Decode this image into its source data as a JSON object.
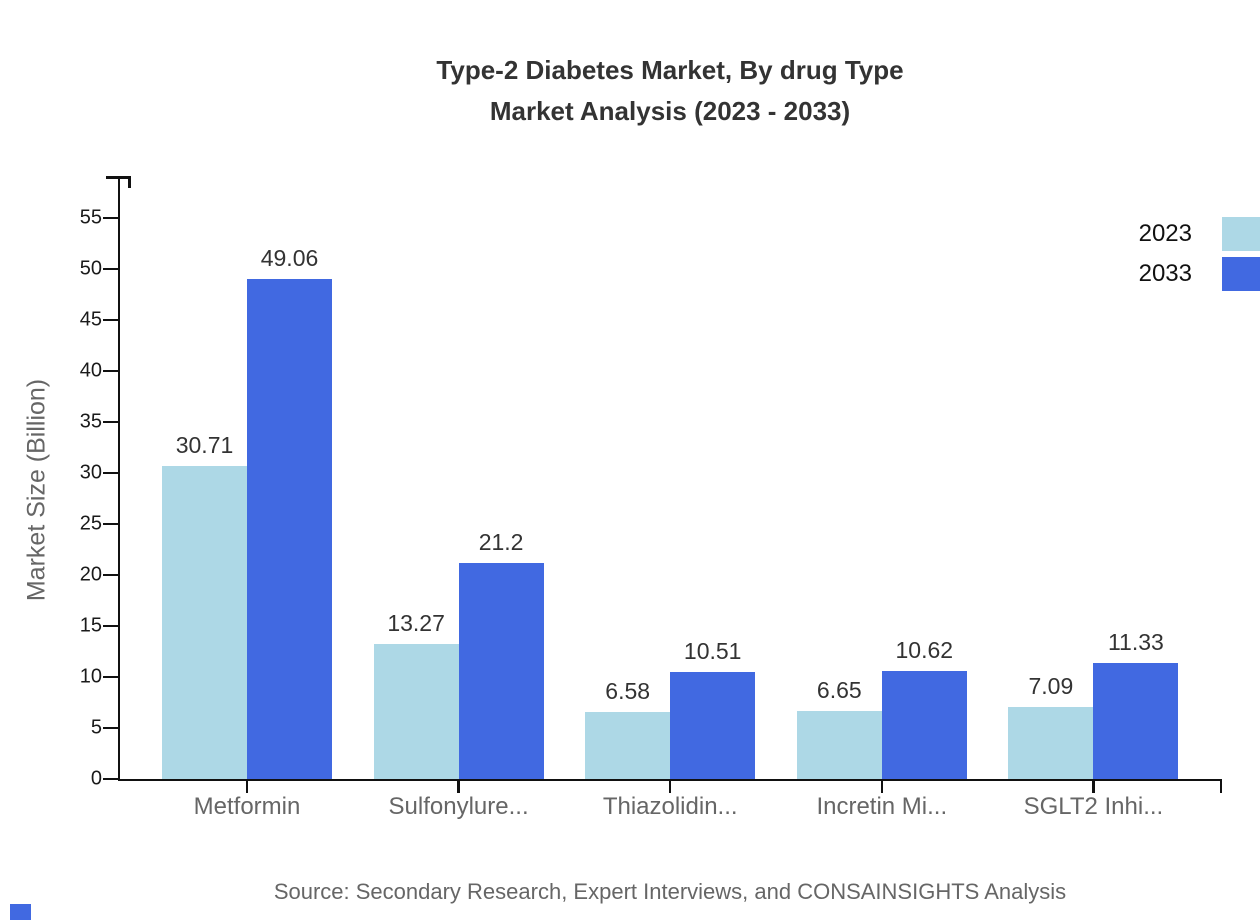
{
  "title": {
    "line1": "Type-2 Diabetes Market, By drug Type",
    "line2": "Market Analysis (2023 - 2033)"
  },
  "source": {
    "text": "Source: Secondary Research, Expert Interviews, and CONSAINSIGHTS Analysis"
  },
  "legend": [
    {
      "label": "2023",
      "color": "#ADD8E6"
    },
    {
      "label": "2033",
      "color": "#4169E1"
    }
  ],
  "colors": {
    "series_2023": "#ADD8E6",
    "series_2033": "#4169E1",
    "axis": "#111111",
    "title_text": "#333333",
    "muted_text": "#666666"
  },
  "chart_data": {
    "type": "bar",
    "title": "Type-2 Diabetes Market, By drug Type Market Analysis (2023 - 2033)",
    "categories": [
      "Metformin",
      "Sulfonylure...",
      "Thiazolidin...",
      "Incretin Mi...",
      "SGLT2 Inhi..."
    ],
    "series": [
      {
        "name": "2023",
        "color": "#ADD8E6",
        "values": [
          30.71,
          13.27,
          6.58,
          6.65,
          7.09
        ],
        "labels": [
          "30.71",
          "13.27",
          "6.58",
          "6.65",
          "7.09"
        ]
      },
      {
        "name": "2033",
        "color": "#4169E1",
        "values": [
          49.06,
          21.2,
          10.51,
          10.62,
          11.33
        ],
        "labels": [
          "49.06",
          "21.2",
          "10.51",
          "10.62",
          "11.33"
        ]
      }
    ],
    "xlabel": "",
    "ylabel": "Market Size (Billion)",
    "ylim": [
      0,
      59
    ],
    "yticks": [
      0,
      5,
      10,
      15,
      20,
      25,
      30,
      35,
      40,
      45,
      50,
      55
    ],
    "grid": false,
    "legend_position": "top-right"
  }
}
